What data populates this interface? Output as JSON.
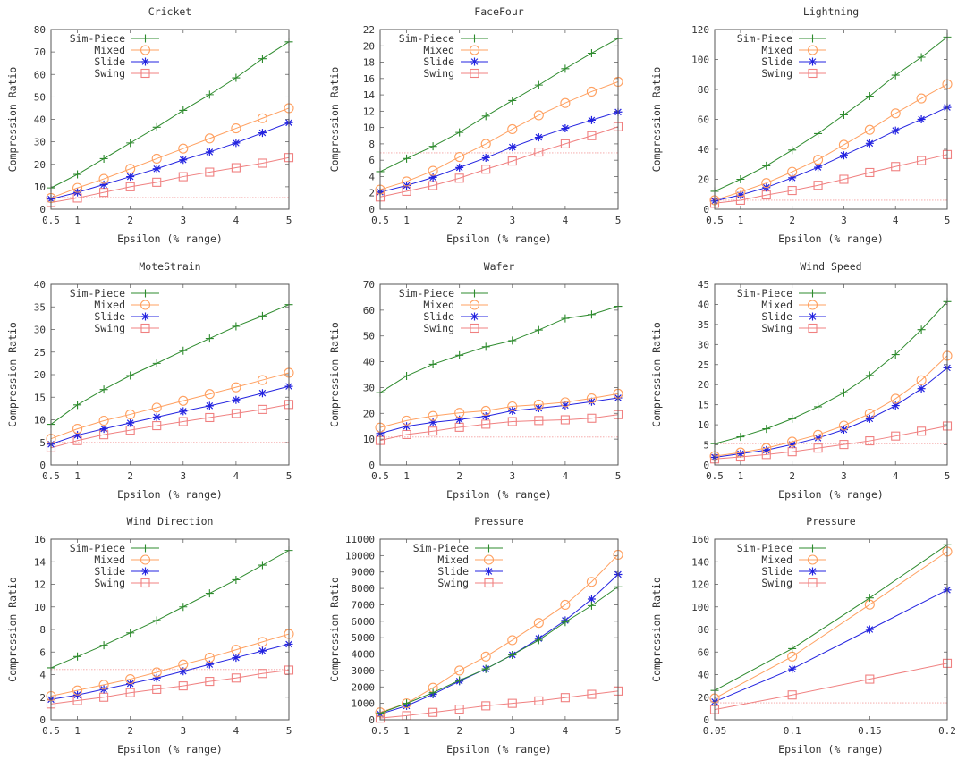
{
  "figure": {
    "rows": 3,
    "cols": 3
  },
  "series_styles": [
    {
      "name": "Sim-Piece",
      "color": "#2e8b2e",
      "marker": "plus"
    },
    {
      "name": "Mixed",
      "color": "#ffa060",
      "marker": "circle"
    },
    {
      "name": "Slide",
      "color": "#2323e0",
      "marker": "star"
    },
    {
      "name": "Swing",
      "color": "#f08080",
      "marker": "square"
    }
  ],
  "chart_data": [
    {
      "type": "line",
      "title": "Cricket",
      "xlabel": "Epsilon (% range)",
      "ylabel": "Compression Ratio",
      "x": [
        0.5,
        1,
        1.5,
        2,
        2.5,
        3,
        3.5,
        4,
        4.5,
        5
      ],
      "xlim": [
        0.5,
        5
      ],
      "xticks": [
        0.5,
        1,
        2,
        3,
        4,
        5
      ],
      "xtick_labels": [
        "0.5",
        "1",
        "2",
        "3",
        "4",
        "5"
      ],
      "ylim": [
        0,
        80
      ],
      "yticks": [
        0,
        10,
        20,
        30,
        40,
        50,
        60,
        70,
        80
      ],
      "reference_line": 5.2,
      "legend": "top-left",
      "series": [
        {
          "name": "Sim-Piece",
          "values": [
            9.5,
            15.5,
            22.5,
            29.5,
            36.5,
            44,
            51,
            58.5,
            67,
            74.5
          ]
        },
        {
          "name": "Mixed",
          "values": [
            5,
            9.5,
            13.5,
            18,
            22.5,
            27,
            31.5,
            36,
            40.5,
            45
          ]
        },
        {
          "name": "Slide",
          "values": [
            4.5,
            7.5,
            11,
            14.5,
            18,
            22,
            25.5,
            29.5,
            34,
            38.5
          ]
        },
        {
          "name": "Swing",
          "values": [
            3,
            5,
            7.5,
            10,
            12,
            14.5,
            16.5,
            18.5,
            20.5,
            23
          ]
        }
      ]
    },
    {
      "type": "line",
      "title": "FaceFour",
      "xlabel": "Epsilon (% range)",
      "ylabel": "Compression Ratio",
      "x": [
        0.5,
        1,
        1.5,
        2,
        2.5,
        3,
        3.5,
        4,
        4.5,
        5
      ],
      "xlim": [
        0.5,
        5
      ],
      "xticks": [
        0.5,
        1,
        2,
        3,
        4,
        5
      ],
      "xtick_labels": [
        "0.5",
        "1",
        "2",
        "3",
        "4",
        "5"
      ],
      "ylim": [
        0,
        22
      ],
      "yticks": [
        0,
        2,
        4,
        6,
        8,
        10,
        12,
        14,
        16,
        18,
        20,
        22
      ],
      "reference_line": 6.9,
      "legend": "top-left",
      "series": [
        {
          "name": "Sim-Piece",
          "values": [
            4.6,
            6.2,
            7.7,
            9.4,
            11.4,
            13.3,
            15.2,
            17.2,
            19.1,
            20.9
          ]
        },
        {
          "name": "Mixed",
          "values": [
            2.4,
            3.4,
            4.7,
            6.4,
            8,
            9.8,
            11.5,
            13,
            14.4,
            15.6
          ]
        },
        {
          "name": "Slide",
          "values": [
            2.1,
            2.9,
            3.9,
            5.1,
            6.3,
            7.6,
            8.8,
            9.9,
            10.9,
            11.9
          ]
        },
        {
          "name": "Swing",
          "values": [
            1.5,
            2.2,
            2.9,
            3.8,
            4.9,
            5.9,
            7,
            8,
            9,
            10.1
          ]
        }
      ]
    },
    {
      "type": "line",
      "title": "Lightning",
      "xlabel": "Epsilon (% range)",
      "ylabel": "Compression Ratio",
      "x": [
        0.5,
        1,
        1.5,
        2,
        2.5,
        3,
        3.5,
        4,
        4.5,
        5
      ],
      "xlim": [
        0.5,
        5
      ],
      "xticks": [
        0.5,
        1,
        2,
        3,
        4,
        5
      ],
      "xtick_labels": [
        "0.5",
        "1",
        "2",
        "3",
        "4",
        "5"
      ],
      "ylim": [
        0,
        120
      ],
      "yticks": [
        0,
        20,
        40,
        60,
        80,
        100,
        120
      ],
      "reference_line": 6,
      "legend": "top-left",
      "series": [
        {
          "name": "Sim-Piece",
          "values": [
            12,
            20,
            29,
            39.5,
            50.5,
            63,
            75.5,
            89.5,
            101.5,
            115
          ]
        },
        {
          "name": "Mixed",
          "values": [
            6,
            11.5,
            17.5,
            25,
            33,
            43,
            53,
            64,
            74,
            83.5
          ]
        },
        {
          "name": "Slide",
          "values": [
            5.5,
            9.5,
            14.5,
            21,
            28,
            36,
            44,
            52.5,
            60,
            68
          ]
        },
        {
          "name": "Swing",
          "values": [
            4,
            6,
            9.5,
            12.5,
            16,
            20,
            24.5,
            28.5,
            32.5,
            36.5
          ]
        }
      ]
    },
    {
      "type": "line",
      "title": "MoteStrain",
      "xlabel": "Epsilon (% range)",
      "ylabel": "Compression Ratio",
      "x": [
        0.5,
        1,
        1.5,
        2,
        2.5,
        3,
        3.5,
        4,
        4.5,
        5
      ],
      "xlim": [
        0.5,
        5
      ],
      "xticks": [
        0.5,
        1,
        2,
        3,
        4,
        5
      ],
      "xtick_labels": [
        "0.5",
        "1",
        "2",
        "3",
        "4",
        "5"
      ],
      "ylim": [
        0,
        40
      ],
      "yticks": [
        0,
        5,
        10,
        15,
        20,
        25,
        30,
        35,
        40
      ],
      "reference_line": 5,
      "legend": "top-left",
      "series": [
        {
          "name": "Sim-Piece",
          "values": [
            9,
            13.3,
            16.7,
            19.8,
            22.5,
            25.3,
            28,
            30.7,
            33,
            35.5
          ]
        },
        {
          "name": "Mixed",
          "values": [
            5.8,
            8,
            9.8,
            11.2,
            12.7,
            14.2,
            15.7,
            17.2,
            18.8,
            20.4
          ]
        },
        {
          "name": "Slide",
          "values": [
            4.6,
            6.6,
            8,
            9.3,
            10.6,
            11.9,
            13.1,
            14.4,
            15.9,
            17.4
          ]
        },
        {
          "name": "Swing",
          "values": [
            3.8,
            5.4,
            6.7,
            7.7,
            8.7,
            9.6,
            10.5,
            11.4,
            12.3,
            13.4
          ]
        }
      ]
    },
    {
      "type": "line",
      "title": "Wafer",
      "xlabel": "Epsilon (% range)",
      "ylabel": "Compression Ratio",
      "x": [
        0.5,
        1,
        1.5,
        2,
        2.5,
        3,
        3.5,
        4,
        4.5,
        5
      ],
      "xlim": [
        0.5,
        5
      ],
      "xticks": [
        0.5,
        1,
        2,
        3,
        4,
        5
      ],
      "xtick_labels": [
        "0.5",
        "1",
        "2",
        "3",
        "4",
        "5"
      ],
      "ylim": [
        0,
        70
      ],
      "yticks": [
        0,
        10,
        20,
        30,
        40,
        50,
        60,
        70
      ],
      "reference_line": 10.8,
      "legend": "top-left",
      "series": [
        {
          "name": "Sim-Piece",
          "values": [
            28,
            34.5,
            39,
            42.5,
            45.8,
            48.2,
            52.3,
            56.8,
            58.3,
            61.5
          ]
        },
        {
          "name": "Mixed",
          "values": [
            14.5,
            17.2,
            19,
            20.2,
            21,
            22.7,
            23.4,
            24.3,
            25.8,
            27.6
          ]
        },
        {
          "name": "Slide",
          "values": [
            12.2,
            15,
            16.5,
            17.6,
            18.9,
            21,
            22,
            23.1,
            24.5,
            26
          ]
        },
        {
          "name": "Swing",
          "values": [
            9.5,
            11.8,
            13.1,
            14.6,
            15.8,
            16.8,
            17.2,
            17.5,
            18.1,
            19.5
          ]
        }
      ]
    },
    {
      "type": "line",
      "title": "Wind Speed",
      "xlabel": "Epsilon (% range)",
      "ylabel": "Compression Ratio",
      "x": [
        0.5,
        1,
        1.5,
        2,
        2.5,
        3,
        3.5,
        4,
        4.5,
        5
      ],
      "xlim": [
        0.5,
        5
      ],
      "xticks": [
        0.5,
        1,
        2,
        3,
        4,
        5
      ],
      "xtick_labels": [
        "0.5",
        "1",
        "2",
        "3",
        "4",
        "5"
      ],
      "ylim": [
        0,
        45
      ],
      "yticks": [
        0,
        5,
        10,
        15,
        20,
        25,
        30,
        35,
        40,
        45
      ],
      "reference_line": 5.3,
      "legend": "top-left",
      "series": [
        {
          "name": "Sim-Piece",
          "values": [
            5.3,
            7,
            9,
            11.5,
            14.5,
            18,
            22.3,
            27.5,
            33.7,
            40.7
          ]
        },
        {
          "name": "Mixed",
          "values": [
            2.2,
            3.1,
            4.2,
            5.8,
            7.5,
            9.8,
            12.8,
            16.5,
            21.1,
            27.2
          ]
        },
        {
          "name": "Slide",
          "values": [
            1.9,
            2.8,
            3.7,
            5.1,
            6.7,
            8.8,
            11.5,
            14.8,
            19,
            24.2
          ]
        },
        {
          "name": "Swing",
          "values": [
            1.5,
            2,
            2.6,
            3.3,
            4.2,
            5.1,
            6,
            7.2,
            8.4,
            9.7
          ]
        }
      ]
    },
    {
      "type": "line",
      "title": "Wind Direction",
      "xlabel": "Epsilon (% range)",
      "ylabel": "Compression Ratio",
      "x": [
        0.5,
        1,
        1.5,
        2,
        2.5,
        3,
        3.5,
        4,
        4.5,
        5
      ],
      "xlim": [
        0.5,
        5
      ],
      "xticks": [
        0.5,
        1,
        2,
        3,
        4,
        5
      ],
      "xtick_labels": [
        "0.5",
        "1",
        "2",
        "3",
        "4",
        "5"
      ],
      "ylim": [
        0,
        16
      ],
      "yticks": [
        0,
        2,
        4,
        6,
        8,
        10,
        12,
        14,
        16
      ],
      "reference_line": 4.45,
      "legend": "top-left",
      "series": [
        {
          "name": "Sim-Piece",
          "values": [
            4.6,
            5.6,
            6.6,
            7.7,
            8.8,
            10,
            11.2,
            12.4,
            13.7,
            15
          ]
        },
        {
          "name": "Mixed",
          "values": [
            2.1,
            2.6,
            3.1,
            3.6,
            4.2,
            4.9,
            5.5,
            6.2,
            6.9,
            7.6
          ]
        },
        {
          "name": "Slide",
          "values": [
            1.8,
            2.2,
            2.7,
            3.2,
            3.7,
            4.3,
            4.9,
            5.5,
            6.1,
            6.7
          ]
        },
        {
          "name": "Swing",
          "values": [
            1.4,
            1.7,
            2,
            2.4,
            2.7,
            3,
            3.4,
            3.7,
            4.1,
            4.4
          ]
        }
      ]
    },
    {
      "type": "line",
      "title": "Pressure",
      "xlabel": "Epsilon (% range)",
      "ylabel": "Compression Ratio",
      "x": [
        0.5,
        1,
        1.5,
        2,
        2.5,
        3,
        3.5,
        4,
        4.5,
        5
      ],
      "xlim": [
        0.5,
        5
      ],
      "xticks": [
        0.5,
        1,
        2,
        3,
        4,
        5
      ],
      "xtick_labels": [
        "0.5",
        "1",
        "2",
        "3",
        "4",
        "5"
      ],
      "ylim": [
        0,
        11000
      ],
      "yticks": [
        0,
        1000,
        2000,
        3000,
        4000,
        5000,
        6000,
        7000,
        8000,
        9000,
        10000,
        11000
      ],
      "reference_line": null,
      "legend": "top-left",
      "series": [
        {
          "name": "Sim-Piece",
          "values": [
            400,
            1000,
            1650,
            2400,
            3100,
            3950,
            4850,
            5950,
            6950,
            8100
          ]
        },
        {
          "name": "Mixed",
          "values": [
            450,
            1000,
            1950,
            3000,
            3850,
            4850,
            5900,
            7000,
            8400,
            10050
          ]
        },
        {
          "name": "Slide",
          "values": [
            350,
            850,
            1550,
            2350,
            3100,
            3950,
            4950,
            6050,
            7350,
            8850
          ]
        },
        {
          "name": "Swing",
          "values": [
            100,
            250,
            450,
            650,
            850,
            1000,
            1150,
            1350,
            1550,
            1750
          ]
        }
      ]
    },
    {
      "type": "line",
      "title": "Pressure",
      "xlabel": "Epsilon (% range)",
      "ylabel": "Compression Ratio",
      "x": [
        0.05,
        0.1,
        0.15,
        0.2
      ],
      "xlim": [
        0.05,
        0.2
      ],
      "xticks": [
        0.05,
        0.1,
        0.15,
        0.2
      ],
      "xtick_labels": [
        "0.05",
        "0.1",
        "0.15",
        "0.2"
      ],
      "ylim": [
        0,
        160
      ],
      "yticks": [
        0,
        20,
        40,
        60,
        80,
        100,
        120,
        140,
        160
      ],
      "reference_line": 15,
      "legend": "top-left",
      "series": [
        {
          "name": "Sim-Piece",
          "values": [
            26,
            63,
            108,
            155
          ]
        },
        {
          "name": "Mixed",
          "values": [
            19,
            56,
            102,
            149
          ]
        },
        {
          "name": "Slide",
          "values": [
            16,
            45,
            80,
            115
          ]
        },
        {
          "name": "Swing",
          "values": [
            9,
            22,
            36,
            50
          ]
        }
      ]
    }
  ]
}
